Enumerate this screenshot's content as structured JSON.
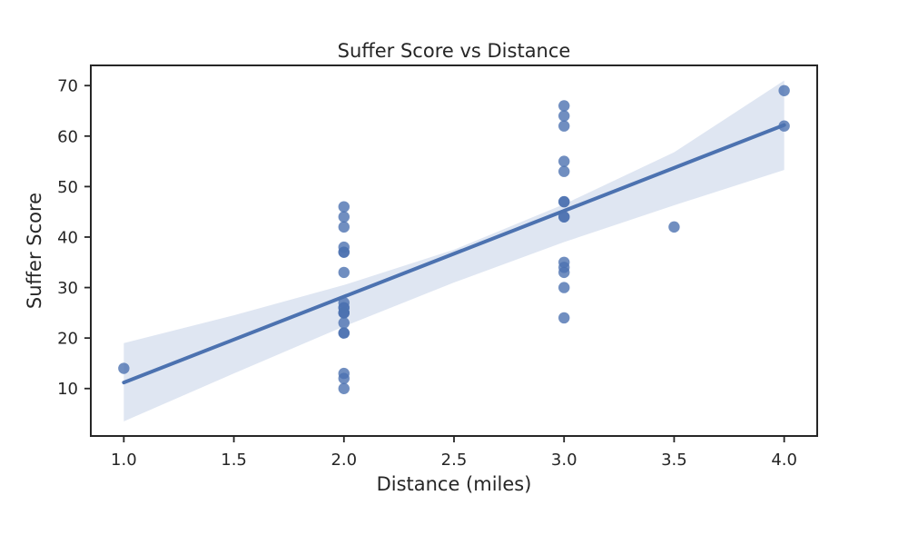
{
  "chart_data": {
    "type": "scatter",
    "title": "Suffer Score vs Distance",
    "xlabel": "Distance (miles)",
    "ylabel": "Suffer Score",
    "xlim": [
      0.85,
      4.15
    ],
    "ylim": [
      0.6,
      74
    ],
    "x_ticks": [
      1.0,
      1.5,
      2.0,
      2.5,
      3.0,
      3.5,
      4.0
    ],
    "x_tick_labels": [
      "1.0",
      "1.5",
      "2.0",
      "2.5",
      "3.0",
      "3.5",
      "4.0"
    ],
    "y_ticks": [
      10,
      20,
      30,
      40,
      50,
      60,
      70
    ],
    "y_tick_labels": [
      "10",
      "20",
      "30",
      "40",
      "50",
      "60",
      "70"
    ],
    "grid": false,
    "colors": {
      "points": "#4c72b0",
      "regression_line": "#4c72b0",
      "confidence_band": "#dfe6f2",
      "axes": "#262626"
    },
    "series": [
      {
        "x": [
          1.0,
          2.0,
          2.0,
          2.0,
          2.0,
          2.0,
          2.0,
          2.0,
          2.0,
          2.0,
          2.0,
          2.0,
          2.0,
          2.0,
          2.0,
          2.0,
          2.0,
          2.0,
          2.0,
          2.0,
          3.0,
          3.0,
          3.0,
          3.0,
          3.0,
          3.0,
          3.0,
          3.0,
          3.0,
          3.0,
          3.0,
          3.0,
          3.0,
          3.0,
          3.5,
          4.0,
          4.0
        ],
        "y": [
          14,
          10,
          12,
          13,
          21,
          21,
          23,
          25,
          25,
          26,
          27,
          33,
          37,
          37,
          38,
          42,
          44,
          46,
          25,
          26,
          24,
          30,
          33,
          34,
          35,
          44,
          44,
          47,
          47,
          53,
          55,
          62,
          64,
          66,
          42,
          62,
          69
        ]
      }
    ],
    "regression": {
      "slope": 17.0,
      "intercept": -5.8,
      "x_range": [
        1.0,
        4.0
      ],
      "confidence_band": {
        "x": [
          1.0,
          1.5,
          2.0,
          2.5,
          3.0,
          3.5,
          4.0
        ],
        "lower": [
          3.5,
          13.0,
          22.3,
          31.0,
          39.0,
          46.3,
          53.3
        ],
        "upper": [
          19.0,
          24.5,
          30.5,
          37.5,
          46.5,
          56.8,
          71.0
        ]
      }
    }
  }
}
